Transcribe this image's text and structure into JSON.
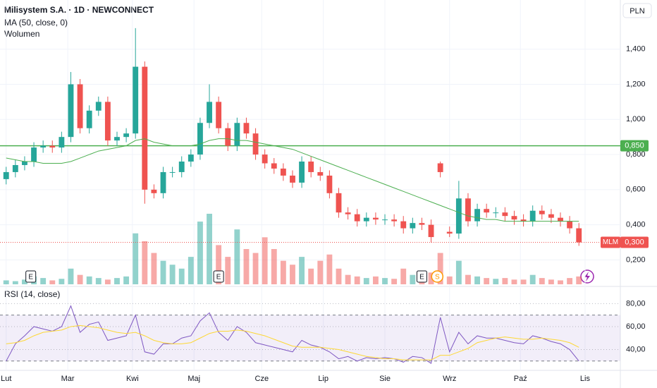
{
  "chart_data": [
    {
      "type": "candlestick",
      "title": "Milisystem S.A. · 1D · NEWCONNECT",
      "indicator_labels": [
        "MA (50, close, 0)",
        "Wolumen"
      ],
      "currency": "PLN",
      "x": [
        0,
        3,
        6,
        9,
        12,
        15,
        18,
        21,
        24,
        27,
        30,
        33,
        36,
        39,
        42,
        45,
        48,
        51,
        54,
        57,
        60,
        63,
        66,
        69,
        72,
        75,
        78,
        81,
        84,
        87,
        90,
        93,
        96,
        99,
        102,
        105,
        108,
        111,
        114,
        117,
        120,
        123,
        126,
        129,
        132,
        135,
        138,
        141,
        144,
        147,
        150,
        153,
        156,
        159,
        162,
        165,
        168,
        171,
        174,
        177,
        180,
        183,
        186
      ],
      "open": [
        0.66,
        0.7,
        0.74,
        0.76,
        0.84,
        0.85,
        0.84,
        0.9,
        1.2,
        0.95,
        1.05,
        1.1,
        0.88,
        0.9,
        0.92,
        1.3,
        0.6,
        0.58,
        0.7,
        0.7,
        0.76,
        0.8,
        0.98,
        1.1,
        0.95,
        0.85,
        0.98,
        0.92,
        0.8,
        0.75,
        0.72,
        0.68,
        0.64,
        0.76,
        0.7,
        0.68,
        0.58,
        0.47,
        0.46,
        0.42,
        0.44,
        0.43,
        0.43,
        0.42,
        0.38,
        0.41,
        0.4,
        0.75,
        0.36,
        0.35,
        0.55,
        0.42,
        0.49,
        0.47,
        0.47,
        0.45,
        0.43,
        0.42,
        0.48,
        0.46,
        0.44,
        0.42,
        0.38
      ],
      "high": [
        0.73,
        0.77,
        0.79,
        0.87,
        0.88,
        0.88,
        0.93,
        1.27,
        1.23,
        1.08,
        1.13,
        1.13,
        0.93,
        0.95,
        1.52,
        1.33,
        0.63,
        0.73,
        0.73,
        0.79,
        0.83,
        1.01,
        1.2,
        1.13,
        0.98,
        1.01,
        1.01,
        0.95,
        0.83,
        0.78,
        0.75,
        0.71,
        0.79,
        0.79,
        0.73,
        0.71,
        0.61,
        0.5,
        0.49,
        0.47,
        0.47,
        0.46,
        0.46,
        0.45,
        0.44,
        0.44,
        0.43,
        0.76,
        0.39,
        0.65,
        0.58,
        0.52,
        0.52,
        0.5,
        0.5,
        0.48,
        0.46,
        0.51,
        0.51,
        0.49,
        0.47,
        0.45,
        0.41
      ],
      "low": [
        0.63,
        0.67,
        0.71,
        0.73,
        0.81,
        0.81,
        0.81,
        0.87,
        0.92,
        0.92,
        1.02,
        0.85,
        0.85,
        0.87,
        0.89,
        0.52,
        0.55,
        0.55,
        0.67,
        0.67,
        0.73,
        0.77,
        0.95,
        0.92,
        0.82,
        0.82,
        0.89,
        0.77,
        0.72,
        0.69,
        0.65,
        0.61,
        0.61,
        0.67,
        0.65,
        0.55,
        0.44,
        0.43,
        0.39,
        0.39,
        0.4,
        0.4,
        0.39,
        0.35,
        0.35,
        0.37,
        0.3,
        0.67,
        0.33,
        0.32,
        0.39,
        0.39,
        0.44,
        0.44,
        0.42,
        0.4,
        0.39,
        0.39,
        0.43,
        0.41,
        0.39,
        0.35,
        0.28
      ],
      "close": [
        0.7,
        0.74,
        0.76,
        0.84,
        0.85,
        0.84,
        0.9,
        1.2,
        0.95,
        1.05,
        1.1,
        0.88,
        0.9,
        0.92,
        1.3,
        0.6,
        0.58,
        0.7,
        0.7,
        0.76,
        0.8,
        0.98,
        1.1,
        0.95,
        0.85,
        0.98,
        0.92,
        0.8,
        0.75,
        0.72,
        0.68,
        0.64,
        0.76,
        0.7,
        0.68,
        0.58,
        0.47,
        0.46,
        0.42,
        0.44,
        0.43,
        0.43,
        0.42,
        0.38,
        0.41,
        0.4,
        0.33,
        0.7,
        0.35,
        0.55,
        0.42,
        0.49,
        0.47,
        0.47,
        0.45,
        0.43,
        0.42,
        0.48,
        0.46,
        0.44,
        0.42,
        0.38,
        0.3
      ],
      "volume": [
        5,
        4,
        6,
        10,
        8,
        5,
        7,
        20,
        12,
        10,
        8,
        6,
        8,
        10,
        65,
        55,
        40,
        30,
        25,
        20,
        35,
        80,
        90,
        50,
        35,
        70,
        45,
        40,
        60,
        45,
        30,
        25,
        35,
        20,
        30,
        38,
        20,
        12,
        10,
        8,
        10,
        8,
        7,
        20,
        12,
        8,
        15,
        40,
        10,
        30,
        12,
        10,
        8,
        7,
        8,
        6,
        6,
        12,
        8,
        6,
        5,
        8,
        10
      ],
      "ma": [
        0.78,
        0.77,
        0.76,
        0.76,
        0.75,
        0.75,
        0.75,
        0.76,
        0.78,
        0.8,
        0.82,
        0.83,
        0.84,
        0.85,
        0.88,
        0.89,
        0.87,
        0.86,
        0.85,
        0.85,
        0.85,
        0.86,
        0.88,
        0.89,
        0.89,
        0.88,
        0.88,
        0.87,
        0.86,
        0.85,
        0.84,
        0.83,
        0.81,
        0.79,
        0.77,
        0.75,
        0.73,
        0.71,
        0.69,
        0.67,
        0.65,
        0.63,
        0.61,
        0.59,
        0.57,
        0.55,
        0.53,
        0.51,
        0.49,
        0.47,
        0.45,
        0.44,
        0.43,
        0.43,
        0.42,
        0.42,
        0.42,
        0.42,
        0.42,
        0.42,
        0.42,
        0.42,
        0.42
      ],
      "up_color": "#26a69a",
      "down_color": "#ef5350",
      "ma_color": "#4caf50",
      "xlim": [
        -2,
        199
      ],
      "xticks": [
        {
          "value": 0,
          "label": "Lut"
        },
        {
          "value": 20,
          "label": "Mar"
        },
        {
          "value": 41,
          "label": "Kwi"
        },
        {
          "value": 61,
          "label": "Maj"
        },
        {
          "value": 83,
          "label": "Cze"
        },
        {
          "value": 103,
          "label": "Lip"
        },
        {
          "value": 123,
          "label": "Sie"
        },
        {
          "value": 144,
          "label": "Wrz"
        },
        {
          "value": 167,
          "label": "Paź"
        },
        {
          "value": 188,
          "label": "Lis"
        }
      ],
      "ylim": [
        0.053,
        1.68
      ],
      "yticks": [
        {
          "value": 0.2,
          "label": "0,200"
        },
        {
          "value": 0.4,
          "label": "0,400"
        },
        {
          "value": 0.6,
          "label": "0,600"
        },
        {
          "value": 0.8,
          "label": "0,800"
        },
        {
          "value": 1.0,
          "label": "1,000"
        },
        {
          "value": 1.2,
          "label": "1,200"
        },
        {
          "value": 1.4,
          "label": "1,400"
        }
      ],
      "hline": {
        "value": 0.85,
        "label": "0,850",
        "color": "#4caf50"
      },
      "last_price": {
        "value": 0.3,
        "label": "0,300",
        "symbol": "MLM"
      },
      "events": [
        {
          "x": 8,
          "label": "E"
        },
        {
          "x": 69,
          "label": "E"
        },
        {
          "x": 135,
          "label": "E"
        },
        {
          "x": 140,
          "label": "S"
        }
      ]
    },
    {
      "type": "line",
      "title": "RSI (14, close)",
      "x": [
        0,
        3,
        6,
        9,
        12,
        15,
        18,
        21,
        24,
        27,
        30,
        33,
        36,
        39,
        42,
        45,
        48,
        51,
        54,
        57,
        60,
        63,
        66,
        69,
        72,
        75,
        78,
        81,
        84,
        87,
        90,
        93,
        96,
        99,
        102,
        105,
        108,
        111,
        114,
        117,
        120,
        123,
        126,
        129,
        132,
        135,
        138,
        141,
        144,
        147,
        150,
        153,
        156,
        159,
        162,
        165,
        168,
        171,
        174,
        177,
        180,
        183,
        186
      ],
      "series": [
        {
          "color": "#7e57c2",
          "values": [
            30,
            45,
            52,
            60,
            58,
            56,
            60,
            78,
            55,
            62,
            64,
            48,
            50,
            52,
            70,
            38,
            36,
            45,
            45,
            50,
            52,
            65,
            72,
            55,
            48,
            60,
            55,
            46,
            44,
            42,
            40,
            38,
            48,
            44,
            42,
            38,
            32,
            34,
            30,
            33,
            32,
            33,
            32,
            29,
            34,
            33,
            28,
            68,
            38,
            55,
            45,
            52,
            50,
            50,
            48,
            46,
            45,
            52,
            50,
            47,
            45,
            40,
            30
          ]
        },
        {
          "color": "#fdd835",
          "values": [
            45,
            46,
            48,
            52,
            55,
            56,
            57,
            60,
            61,
            60,
            59,
            57,
            55,
            54,
            55,
            52,
            48,
            46,
            45,
            45,
            46,
            50,
            54,
            56,
            56,
            57,
            56,
            54,
            52,
            49,
            46,
            43,
            42,
            42,
            42,
            41,
            40,
            38,
            36,
            34,
            33,
            32,
            32,
            31,
            31,
            31,
            31,
            35,
            35,
            38,
            41,
            46,
            48,
            50,
            51,
            50,
            49,
            49,
            50,
            49,
            48,
            46,
            42
          ]
        }
      ],
      "xlim": [
        -2,
        199
      ],
      "ylim": [
        21.9,
        93.75
      ],
      "yticks": [
        {
          "value": 40,
          "label": "40,00"
        },
        {
          "value": 60,
          "label": "60,00"
        },
        {
          "value": 80,
          "label": "80,00"
        }
      ],
      "levels": [
        30,
        70
      ]
    }
  ]
}
